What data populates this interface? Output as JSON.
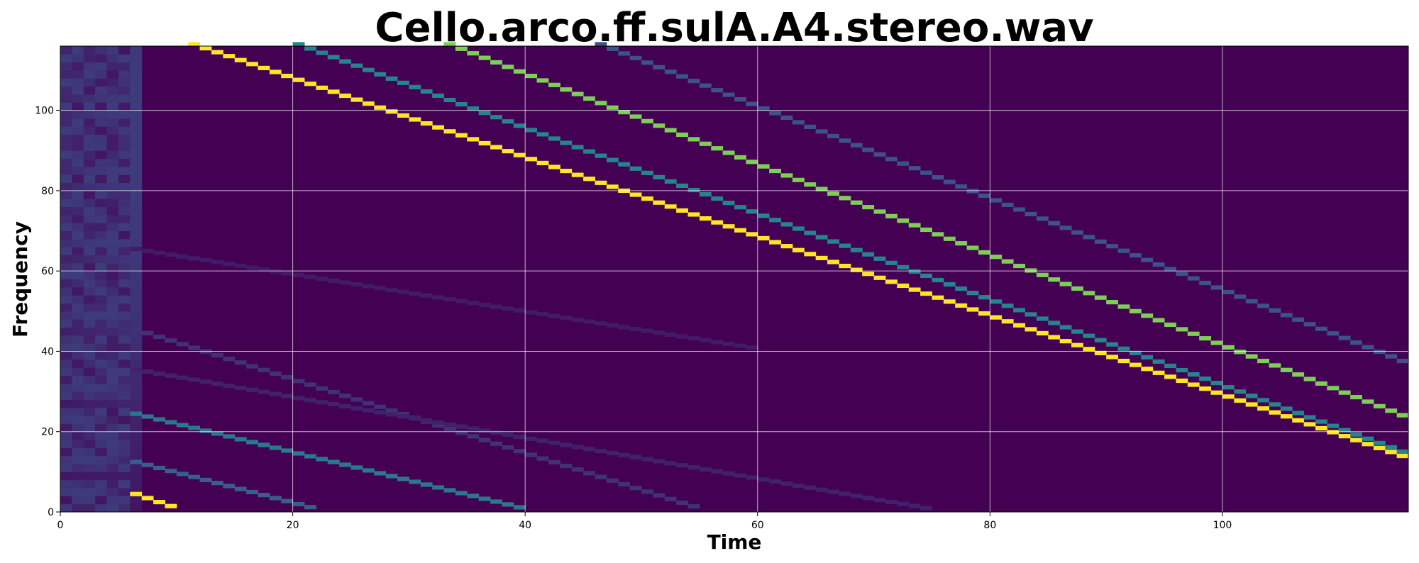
{
  "chart_data": {
    "type": "heatmap",
    "title": "Cello.arco.ff.sulA.A4.stereo.wav",
    "xlabel": "Time",
    "ylabel": "Frequency",
    "xlim": [
      0,
      116
    ],
    "ylim": [
      0,
      116
    ],
    "x_ticks": [
      0,
      20,
      40,
      60,
      80,
      100
    ],
    "y_ticks": [
      0,
      20,
      40,
      60,
      80,
      100
    ],
    "grid": true,
    "colormap": "viridis",
    "background_value": 0.0,
    "onset_frames": [
      0,
      1,
      2,
      3,
      4,
      5,
      6
    ],
    "harmonic_tracks": [
      {
        "start": [
          6,
          4
        ],
        "end": [
          10,
          0
        ],
        "intensity": 1.0
      },
      {
        "start": [
          11,
          116
        ],
        "end": [
          116,
          12.5
        ],
        "intensity": 1.0
      },
      {
        "start": [
          33,
          116
        ],
        "end": [
          116,
          22.5
        ],
        "intensity": 0.8
      },
      {
        "start": [
          20,
          116
        ],
        "end": [
          116,
          13.5
        ],
        "intensity": 0.45
      },
      {
        "start": [
          46,
          116
        ],
        "end": [
          116,
          36
        ],
        "intensity": 0.25
      },
      {
        "start": [
          6,
          24
        ],
        "end": [
          40,
          0
        ],
        "intensity": 0.4
      },
      {
        "start": [
          6,
          12
        ],
        "end": [
          22,
          0
        ],
        "intensity": 0.3
      },
      {
        "start": [
          6,
          45
        ],
        "end": [
          55,
          0
        ],
        "intensity": 0.15
      },
      {
        "start": [
          6,
          35
        ],
        "end": [
          75,
          0
        ],
        "intensity": 0.1
      },
      {
        "start": [
          6,
          65
        ],
        "end": [
          60,
          40
        ],
        "intensity": 0.08
      }
    ]
  }
}
